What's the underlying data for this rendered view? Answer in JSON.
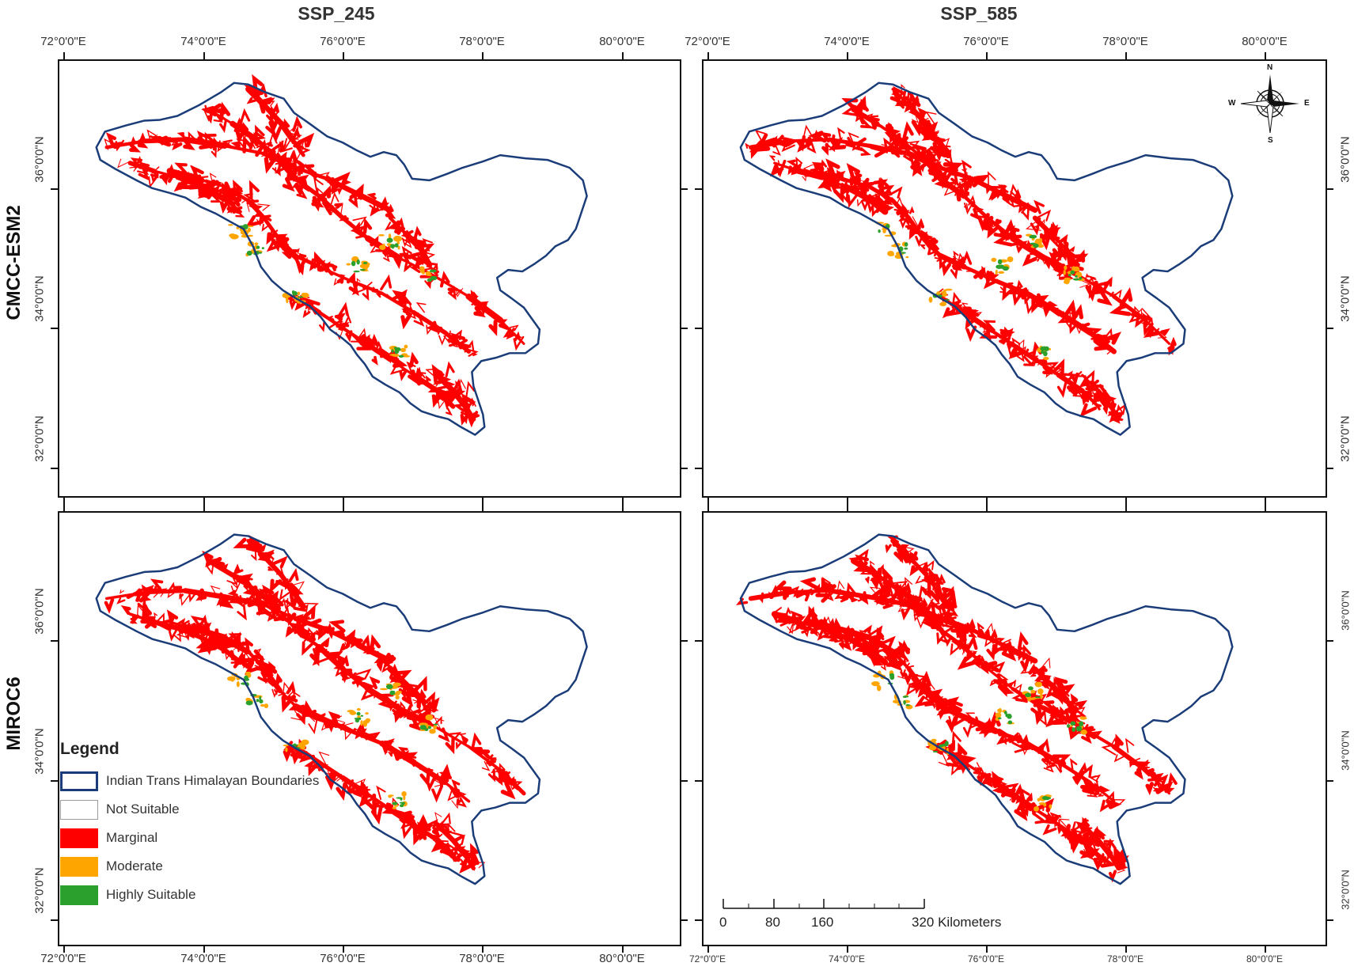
{
  "column_titles": [
    "SSP_245",
    "SSP_585"
  ],
  "row_titles": [
    "CMCC-ESM2",
    "MIROC6"
  ],
  "longitude_labels": [
    "72°0'0\"E",
    "74°0'0\"E",
    "76°0'0\"E",
    "78°0'0\"E",
    "80°0'0\"E"
  ],
  "latitude_labels": [
    "36°0'0\"N",
    "34°0'0\"N",
    "32°0'0\"N"
  ],
  "legend": {
    "title": "Legend",
    "items": [
      {
        "label": "Indian Trans Himalayan Boundaries",
        "color": "#ffffff",
        "border": "#1a3c78"
      },
      {
        "label": "Not Suitable",
        "color": "#ffffff",
        "border": "#9a9a9a"
      },
      {
        "label": "Marginal",
        "color": "#ff0000",
        "border": "#ff0000"
      },
      {
        "label": "Moderate",
        "color": "#ffa500",
        "border": "#ffa500"
      },
      {
        "label": "Highly Suitable",
        "color": "#2ca02c",
        "border": "#2ca02c"
      }
    ]
  },
  "scale_bar": {
    "labels": [
      "0",
      "80",
      "160",
      "320 Kilometers"
    ]
  },
  "compass": {
    "n": "N",
    "s": "S",
    "e": "E",
    "w": "W"
  },
  "colors": {
    "boundary": "#1a3c78",
    "marginal": "#ff0000",
    "moderate": "#ffa500",
    "highly_suitable": "#2ca02c"
  }
}
